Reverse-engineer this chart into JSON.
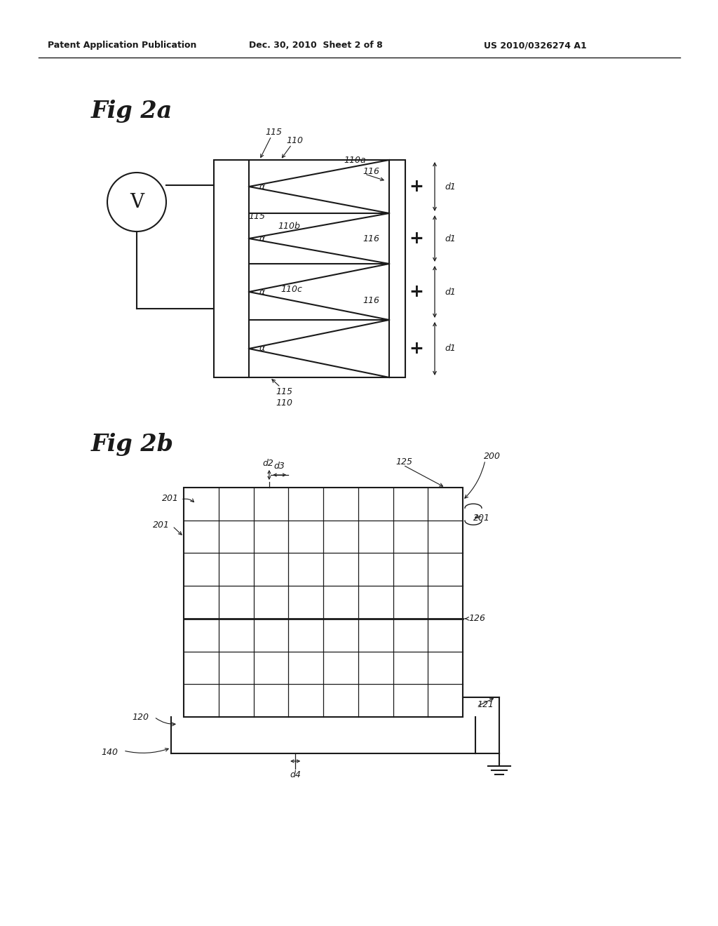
{
  "header_left": "Patent Application Publication",
  "header_mid": "Dec. 30, 2010  Sheet 2 of 8",
  "header_right": "US 2010/0326274 A1",
  "fig2a_label": "Fig 2a",
  "fig2b_label": "Fig 2b",
  "bg_color": "#ffffff",
  "line_color": "#1a1a1a"
}
